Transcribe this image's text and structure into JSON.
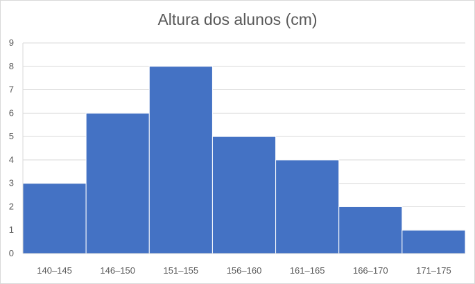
{
  "chart_data": {
    "type": "bar",
    "title": "Altura dos alunos (cm)",
    "xlabel": "",
    "ylabel": "",
    "categories": [
      "140–145",
      "146–150",
      "151–155",
      "156–160",
      "161–165",
      "166–170",
      "171–175"
    ],
    "values": [
      3,
      6,
      8,
      5,
      4,
      2,
      1
    ],
    "ylim": [
      0,
      9
    ],
    "yticks": [
      "0",
      "1",
      "2",
      "3",
      "4",
      "5",
      "6",
      "7",
      "8",
      "9"
    ],
    "grid": true,
    "legend": "none",
    "bar_color": "#4472c4",
    "grid_color": "#d9d9d9"
  }
}
